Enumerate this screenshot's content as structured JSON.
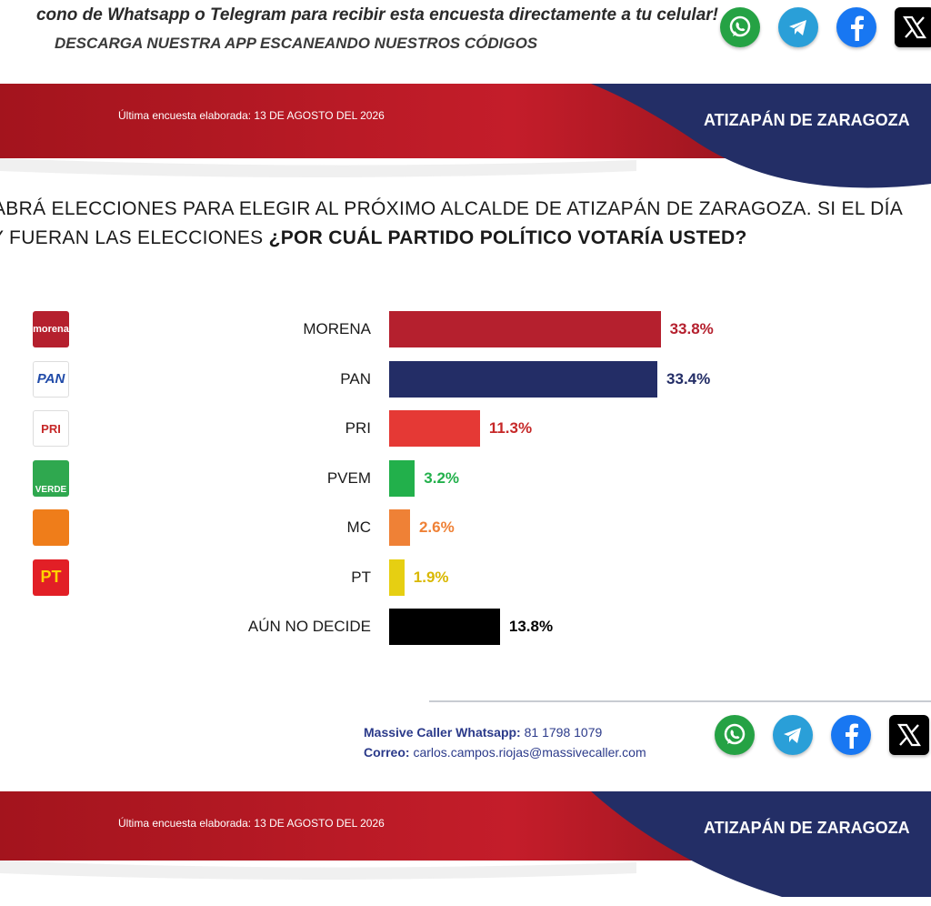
{
  "promo": {
    "line1": "cono de Whatsapp o Telegram para recibir esta encuesta directamente a tu celular!",
    "line2": "DESCARGA NUESTRA APP ESCANEANDO NUESTROS CÓDIGOS"
  },
  "social_icons": [
    "whatsapp-icon",
    "telegram-icon",
    "facebook-icon",
    "x-icon"
  ],
  "header": {
    "date_text": "Última encuesta elaborada: 13 DE AGOSTO DEL 2026",
    "place": "ATIZAPÁN DE ZARAGOZA"
  },
  "question": {
    "line1": "ABRÁ ELECCIONES PARA ELEGIR AL PRÓXIMO ALCALDE DE ATIZAPÁN DE ZARAGOZA. SI EL DÍA",
    "line2_plain": "Y FUERAN LAS ELECCIONES ",
    "line2_bold": "¿POR CUÁL PARTIDO POLÍTICO VOTARÍA USTED?"
  },
  "chart_data": {
    "type": "bar",
    "orientation": "horizontal",
    "categories": [
      "MORENA",
      "PAN",
      "PRI",
      "PVEM",
      "MC",
      "PT",
      "AÚN NO DECIDE"
    ],
    "values": [
      33.8,
      33.4,
      11.3,
      3.2,
      2.6,
      1.9,
      13.8
    ],
    "labels": [
      "33.8%",
      "33.4%",
      "11.3%",
      "3.2%",
      "2.6%",
      "1.9%",
      "13.8%"
    ],
    "colors": [
      "#b5202e",
      "#232d66",
      "#e53935",
      "#22b04b",
      "#ef8136",
      "#e6cf12",
      "#000000"
    ],
    "label_colors": [
      "#b5202e",
      "#232d66",
      "#c62828",
      "#22b04b",
      "#ef8136",
      "#d9b800",
      "#000000"
    ],
    "logos": [
      {
        "name": "morena-logo",
        "text": "morena",
        "bg": "#b5202e",
        "fg": "#ffffff"
      },
      {
        "name": "pan-logo",
        "text": "PAN",
        "bg": "#ffffff",
        "fg": "#1f4aa8"
      },
      {
        "name": "pri-logo",
        "text": "PRI",
        "bg": "#ffffff",
        "fg": "#c62828"
      },
      {
        "name": "pvem-logo",
        "text": "VERDE",
        "bg": "#2fa84f",
        "fg": "#ffffff"
      },
      {
        "name": "mc-logo",
        "text": "",
        "bg": "#ef7d1a",
        "fg": "#ffffff"
      },
      {
        "name": "pt-logo",
        "text": "PT",
        "bg": "#e21f26",
        "fg": "#ffd200"
      }
    ],
    "xlim": [
      0,
      36
    ]
  },
  "footer": {
    "whatsapp_label": "Massive Caller Whatsapp:",
    "whatsapp_number": "81 1798 1079",
    "email_label": "Correo:",
    "email": "carlos.campos.riojas@massivecaller.com"
  },
  "footer_band": {
    "date_text": "Última encuesta elaborada: 13 DE AGOSTO DEL 2026",
    "place": "ATIZAPÁN DE ZARAGOZA"
  }
}
